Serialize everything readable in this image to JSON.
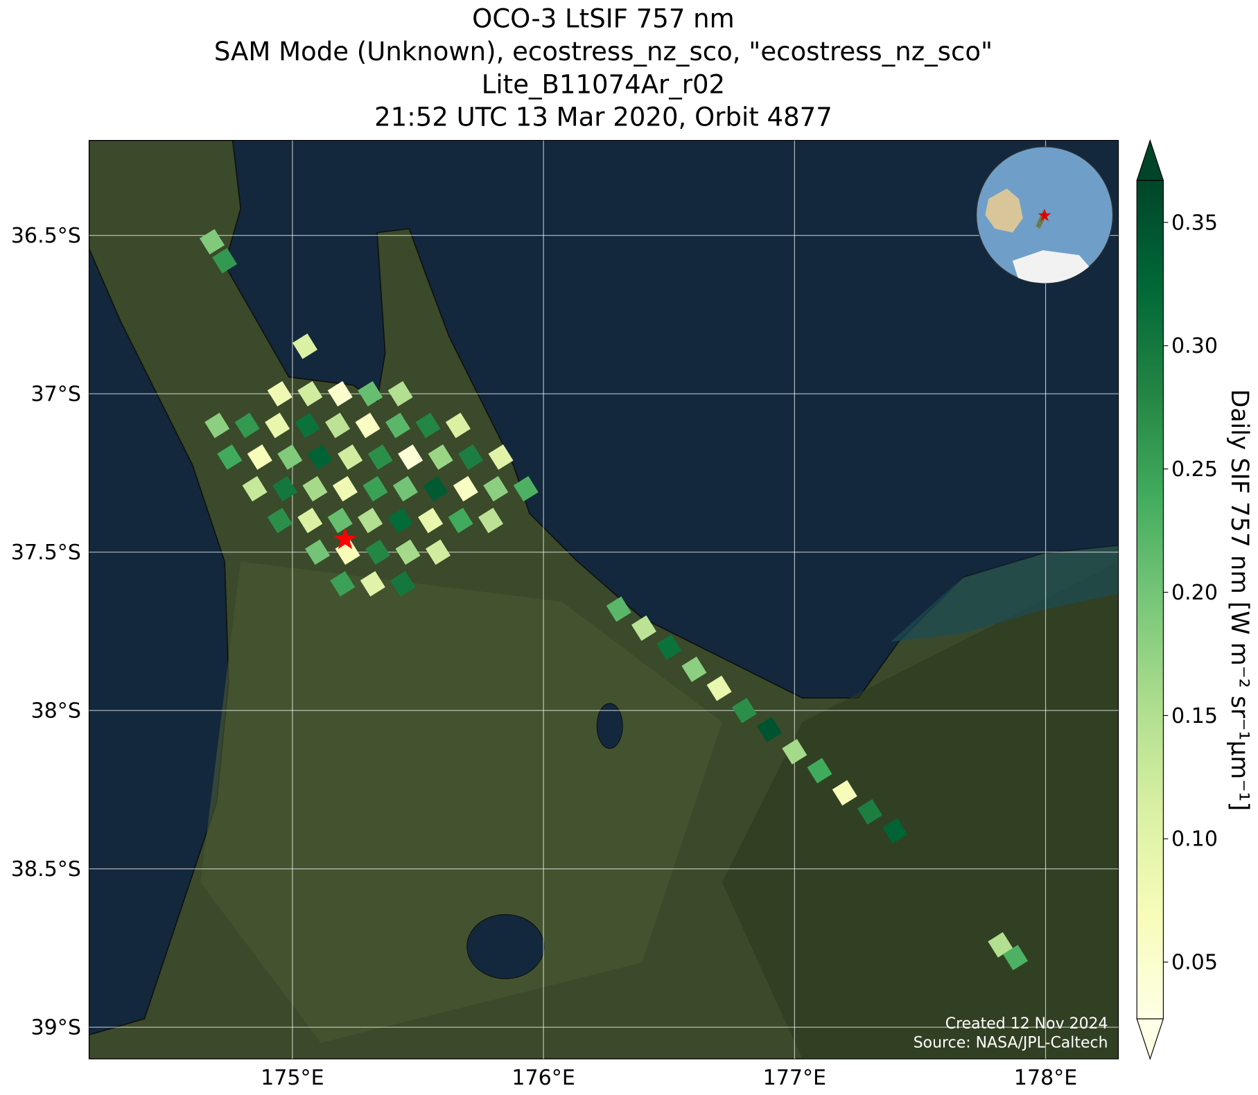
{
  "chart_data": {
    "type": "map",
    "title": [
      "OCO-3 LtSIF 757 nm",
      "SAM Mode (Unknown), ecostress_nz_sco, \"ecostress_nz_sco\"",
      "Lite_B11074Ar_r02",
      "21:52 UTC 13 Mar 2020, Orbit 4877"
    ],
    "xlim": [
      174.19,
      178.29
    ],
    "ylim": [
      -36.2,
      -39.1
    ],
    "xticks": [
      {
        "value": 175,
        "label": "175°E"
      },
      {
        "value": 176,
        "label": "176°E"
      },
      {
        "value": 177,
        "label": "177°E"
      },
      {
        "value": 178,
        "label": "178°E"
      }
    ],
    "yticks": [
      {
        "value": -36.5,
        "label": "36.5°S"
      },
      {
        "value": -37,
        "label": "37°S"
      },
      {
        "value": -37.5,
        "label": "37.5°S"
      },
      {
        "value": -38,
        "label": "38°S"
      },
      {
        "value": -38.5,
        "label": "38.5°S"
      },
      {
        "value": -39,
        "label": "39°S"
      }
    ],
    "grid": true,
    "colorbar": {
      "label": "Daily SIF 757 nm [W m⁻² sr⁻¹μm⁻¹]",
      "clim": [
        0.027,
        0.367
      ],
      "ticks": [
        0.05,
        {
          "value": 0.1,
          "label": "0.10"
        },
        0.15,
        {
          "value": 0.2,
          "label": "0.20"
        },
        0.25,
        {
          "value": 0.3,
          "label": "0.30"
        },
        0.35
      ],
      "colormap": "YlGn"
    },
    "footprints": {
      "lon": [
        174.95,
        175.07,
        175.19,
        175.31,
        175.43,
        174.7,
        174.82,
        174.94,
        175.06,
        175.18,
        175.3,
        175.42,
        175.54,
        175.66,
        174.75,
        174.87,
        174.99,
        175.11,
        175.23,
        175.35,
        175.47,
        175.59,
        175.71,
        175.83,
        174.85,
        174.97,
        175.09,
        175.21,
        175.33,
        175.45,
        175.57,
        175.69,
        175.81,
        175.93,
        174.95,
        175.07,
        175.19,
        175.31,
        175.43,
        175.55,
        175.67,
        175.79,
        175.1,
        175.22,
        175.34,
        175.46,
        175.58,
        175.2,
        175.32,
        175.44,
        176.3,
        176.4,
        176.5,
        176.6,
        176.7,
        176.8,
        176.9,
        177.0,
        177.1,
        177.2,
        177.3,
        177.4,
        174.68,
        174.73,
        175.05,
        177.82,
        177.88
      ],
      "lat": [
        -37.0,
        -37.0,
        -37.0,
        -37.0,
        -37.0,
        -37.1,
        -37.1,
        -37.1,
        -37.1,
        -37.1,
        -37.1,
        -37.1,
        -37.1,
        -37.1,
        -37.2,
        -37.2,
        -37.2,
        -37.2,
        -37.2,
        -37.2,
        -37.2,
        -37.2,
        -37.2,
        -37.2,
        -37.3,
        -37.3,
        -37.3,
        -37.3,
        -37.3,
        -37.3,
        -37.3,
        -37.3,
        -37.3,
        -37.3,
        -37.4,
        -37.4,
        -37.4,
        -37.4,
        -37.4,
        -37.4,
        -37.4,
        -37.4,
        -37.5,
        -37.5,
        -37.5,
        -37.5,
        -37.5,
        -37.6,
        -37.6,
        -37.6,
        -37.68,
        -37.74,
        -37.8,
        -37.87,
        -37.93,
        -38.0,
        -38.06,
        -38.13,
        -38.19,
        -38.26,
        -38.32,
        -38.38,
        -36.52,
        -36.58,
        -36.85,
        -38.74,
        -38.78
      ],
      "sif": [
        0.08,
        0.12,
        0.05,
        0.21,
        0.15,
        0.18,
        0.26,
        0.09,
        0.31,
        0.14,
        0.06,
        0.22,
        0.28,
        0.11,
        0.24,
        0.07,
        0.19,
        0.33,
        0.12,
        0.27,
        0.04,
        0.17,
        0.29,
        0.1,
        0.13,
        0.3,
        0.16,
        0.08,
        0.25,
        0.2,
        0.34,
        0.06,
        0.18,
        0.23,
        0.27,
        0.11,
        0.21,
        0.15,
        0.32,
        0.09,
        0.24,
        0.14,
        0.2,
        0.07,
        0.28,
        0.16,
        0.12,
        0.25,
        0.1,
        0.3,
        0.22,
        0.14,
        0.31,
        0.18,
        0.09,
        0.27,
        0.35,
        0.16,
        0.24,
        0.07,
        0.29,
        0.33,
        0.19,
        0.26,
        0.11,
        0.15,
        0.23
      ]
    },
    "target": {
      "lon": 175.21,
      "lat": -37.46
    },
    "credits": [
      "Created 12 Nov 2024",
      "Source: NASA/JPL-Caltech"
    ]
  }
}
